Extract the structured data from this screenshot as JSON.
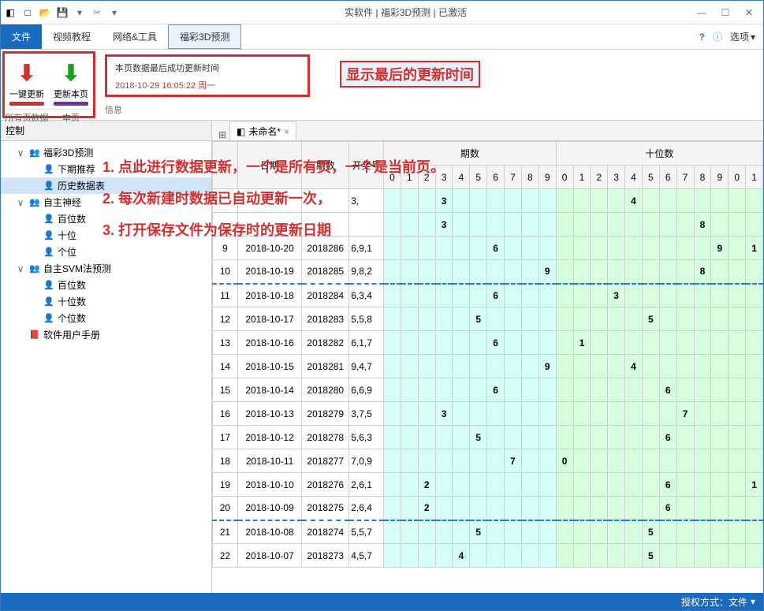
{
  "window": {
    "title": "实软件 | 福彩3D预测 | 已激活"
  },
  "menubar": {
    "tabs": [
      "文件",
      "视频教程",
      "网络&工具",
      "福彩3D预测"
    ],
    "active_index": 0,
    "highlight_index": 3,
    "options_label": "选项"
  },
  "ribbon": {
    "btn1_label": "一键更新",
    "btn2_label": "更新本页",
    "group1_label": "所有页数据",
    "group1b_label": "本页",
    "info_title": "本页数据最后成功更新时间",
    "info_time": "2018-10-29 16:05:22 周一",
    "group2_label": "信息"
  },
  "annotations": {
    "callout": "显示最后的更新时间",
    "line1": "1. 点此进行数据更新，一个是所有页，一个是当前页。",
    "line2": "2. 每次新建时数据已自动更新一次，",
    "line3": "3. 打开保存文件为保存时的更新日期"
  },
  "left_panel": {
    "header": "控制",
    "tree": [
      {
        "level": 1,
        "toggle": "∨",
        "icon": "group",
        "label": "福彩3D预测"
      },
      {
        "level": 2,
        "toggle": "",
        "icon": "person",
        "label": "下期推荐"
      },
      {
        "level": 2,
        "toggle": "",
        "icon": "person",
        "label": "历史数据表",
        "selected": true
      },
      {
        "level": 1,
        "toggle": "∨",
        "icon": "group",
        "label": "自主神经"
      },
      {
        "level": 2,
        "toggle": "",
        "icon": "person",
        "label": "百位数"
      },
      {
        "level": 2,
        "toggle": "",
        "icon": "person",
        "label": "十位"
      },
      {
        "level": 2,
        "toggle": "",
        "icon": "person",
        "label": "个位"
      },
      {
        "level": 1,
        "toggle": "∨",
        "icon": "group",
        "label": "自主SVM法预测"
      },
      {
        "level": 2,
        "toggle": "",
        "icon": "person",
        "label": "百位数"
      },
      {
        "level": 2,
        "toggle": "",
        "icon": "person",
        "label": "十位数"
      },
      {
        "level": 2,
        "toggle": "",
        "icon": "person",
        "label": "个位数"
      },
      {
        "level": 1,
        "toggle": "",
        "icon": "book",
        "label": "软件用户手册"
      }
    ]
  },
  "doc_tab": {
    "label": "未命名*"
  },
  "grid": {
    "group_headers": [
      "",
      "",
      "",
      "",
      "期数",
      "十位数"
    ],
    "digit_headers": [
      "0",
      "1",
      "2",
      "3",
      "4",
      "5",
      "6",
      "7",
      "8",
      "9",
      "0",
      "1",
      "2",
      "3",
      "4",
      "5",
      "6",
      "7",
      "8",
      "9",
      "0",
      "1"
    ],
    "col_headers": [
      "",
      "日期",
      "期数",
      "开奖号"
    ],
    "rows": [
      {
        "idx": "",
        "date": "",
        "issue": "",
        "open": "3,",
        "hits": {
          "3": "3",
          "14": "4"
        }
      },
      {
        "idx": "",
        "date": "",
        "issue": "",
        "open": "",
        "hits": {
          "3": "3",
          "18": "8"
        }
      },
      {
        "idx": "9",
        "date": "2018-10-20",
        "issue": "2018286",
        "open": "6,9,1",
        "hits": {
          "6": "6",
          "19": "9",
          "21": "1"
        }
      },
      {
        "idx": "10",
        "date": "2018-10-19",
        "issue": "2018285",
        "open": "9,8,2",
        "hits": {
          "9": "9",
          "18": "8"
        },
        "sep": true
      },
      {
        "idx": "11",
        "date": "2018-10-18",
        "issue": "2018284",
        "open": "6,3,4",
        "hits": {
          "6": "6",
          "13": "3"
        }
      },
      {
        "idx": "12",
        "date": "2018-10-17",
        "issue": "2018283",
        "open": "5,5,8",
        "hits": {
          "5": "5",
          "15": "5"
        }
      },
      {
        "idx": "13",
        "date": "2018-10-16",
        "issue": "2018282",
        "open": "6,1,7",
        "hits": {
          "6": "6",
          "11": "1"
        }
      },
      {
        "idx": "14",
        "date": "2018-10-15",
        "issue": "2018281",
        "open": "9,4,7",
        "hits": {
          "9": "9",
          "14": "4"
        }
      },
      {
        "idx": "15",
        "date": "2018-10-14",
        "issue": "2018280",
        "open": "6,6,9",
        "hits": {
          "6": "6",
          "16": "6"
        }
      },
      {
        "idx": "16",
        "date": "2018-10-13",
        "issue": "2018279",
        "open": "3,7,5",
        "hits": {
          "3": "3",
          "17": "7"
        }
      },
      {
        "idx": "17",
        "date": "2018-10-12",
        "issue": "2018278",
        "open": "5,6,3",
        "hits": {
          "5": "5",
          "16": "6"
        }
      },
      {
        "idx": "18",
        "date": "2018-10-11",
        "issue": "2018277",
        "open": "7,0,9",
        "hits": {
          "7": "7",
          "10": "0"
        }
      },
      {
        "idx": "19",
        "date": "2018-10-10",
        "issue": "2018276",
        "open": "2,6,1",
        "hits": {
          "2": "2",
          "16": "6",
          "21": "1"
        }
      },
      {
        "idx": "20",
        "date": "2018-10-09",
        "issue": "2018275",
        "open": "2,6,4",
        "hits": {
          "2": "2",
          "16": "6"
        },
        "sep": true
      },
      {
        "idx": "21",
        "date": "2018-10-08",
        "issue": "2018274",
        "open": "5,5,7",
        "hits": {
          "5": "5",
          "15": "5"
        }
      },
      {
        "idx": "22",
        "date": "2018-10-07",
        "issue": "2018273",
        "open": "4,5,7",
        "hits": {
          "4": "4",
          "15": "5"
        }
      }
    ],
    "colors": {
      "sec_a": "#d6fff7",
      "sec_b": "#d6ffe0",
      "border": "#cfcfcf"
    }
  },
  "statusbar": {
    "text": "授权方式：文件"
  }
}
